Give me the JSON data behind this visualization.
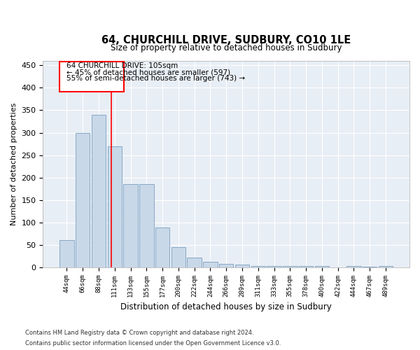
{
  "title": "64, CHURCHILL DRIVE, SUDBURY, CO10 1LE",
  "subtitle": "Size of property relative to detached houses in Sudbury",
  "xlabel": "Distribution of detached houses by size in Sudbury",
  "ylabel": "Number of detached properties",
  "bar_color": "#c8d8e8",
  "bar_edge_color": "#7aa0c0",
  "background_color": "#e8eef5",
  "grid_color": "#ffffff",
  "categories": [
    "44sqm",
    "66sqm",
    "88sqm",
    "111sqm",
    "133sqm",
    "155sqm",
    "177sqm",
    "200sqm",
    "222sqm",
    "244sqm",
    "266sqm",
    "289sqm",
    "311sqm",
    "333sqm",
    "355sqm",
    "378sqm",
    "400sqm",
    "422sqm",
    "444sqm",
    "467sqm",
    "489sqm"
  ],
  "values": [
    60,
    300,
    340,
    270,
    185,
    185,
    88,
    45,
    22,
    12,
    8,
    5,
    3,
    3,
    3,
    3,
    3,
    0,
    3,
    1,
    3
  ],
  "property_label": "64 CHURCHILL DRIVE: 105sqm",
  "annotation_line1": "← 45% of detached houses are smaller (597)",
  "annotation_line2": "55% of semi-detached houses are larger (743) →",
  "ylim": [
    0,
    460
  ],
  "yticks": [
    0,
    50,
    100,
    150,
    200,
    250,
    300,
    350,
    400,
    450
  ],
  "footnote1": "Contains HM Land Registry data © Crown copyright and database right 2024.",
  "footnote2": "Contains public sector information licensed under the Open Government Licence v3.0."
}
